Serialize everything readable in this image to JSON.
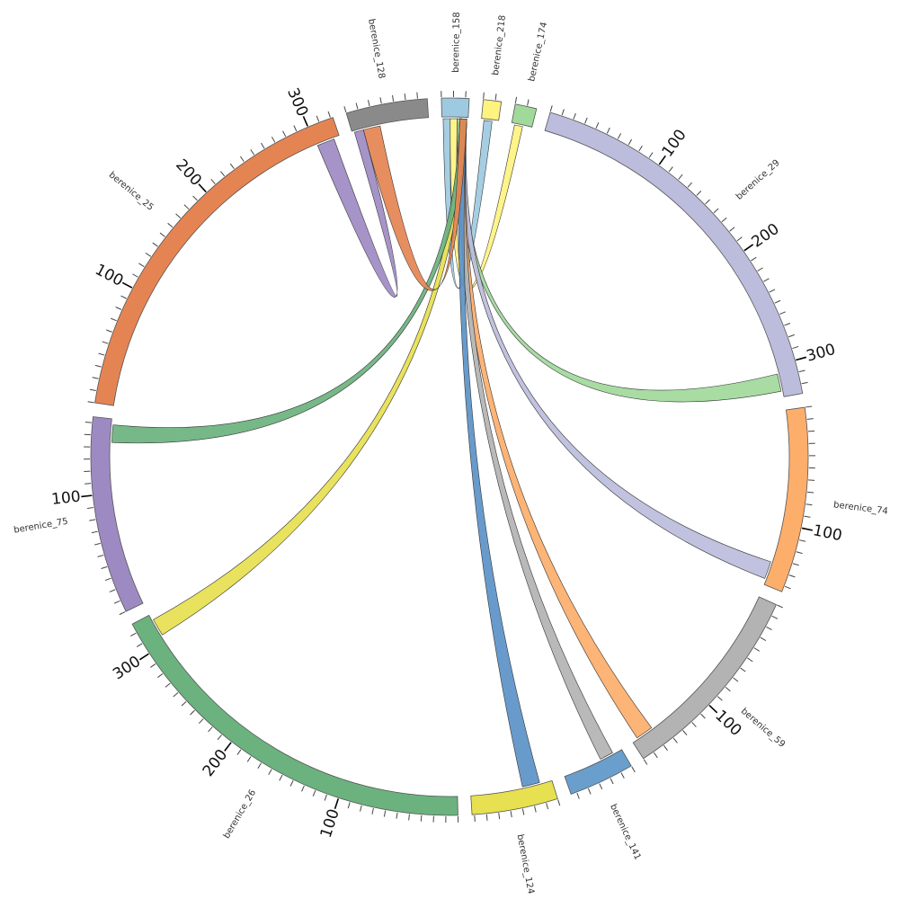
{
  "chart_data": {
    "type": "chord",
    "segments": [
      {
        "name": "berenice_158",
        "length": 23,
        "color": "#9ecae1"
      },
      {
        "name": "berenice_218",
        "length": 15,
        "color": "#fff380"
      },
      {
        "name": "berenice_174",
        "length": 18,
        "color": "#a1d99b"
      },
      {
        "name": "berenice_29",
        "length": 328,
        "color": "#bcbddc"
      },
      {
        "name": "berenice_74",
        "length": 155,
        "color": "#fdae6b"
      },
      {
        "name": "berenice_59",
        "length": 170,
        "color": "#b3b3b3"
      },
      {
        "name": "berenice_141",
        "length": 55,
        "color": "#6a9ecc"
      },
      {
        "name": "berenice_124",
        "length": 72,
        "color": "#e7e050"
      },
      {
        "name": "berenice_26",
        "length": 328,
        "color": "#6bb27f"
      },
      {
        "name": "berenice_75",
        "length": 165,
        "color": "#9e8ac2"
      },
      {
        "name": "berenice_25",
        "length": 322,
        "color": "#e58453"
      },
      {
        "name": "berenice_128",
        "length": 68,
        "color": "#8a8a8a"
      }
    ],
    "ribbons": [
      {
        "source": "berenice_218",
        "target": "berenice_158",
        "color": "#9ecae1"
      },
      {
        "source": "berenice_174",
        "target": "berenice_158",
        "color": "#fff380"
      },
      {
        "source": "berenice_29",
        "target": "berenice_158",
        "color": "#a1d99b"
      },
      {
        "source": "berenice_74",
        "target": "berenice_158",
        "color": "#bcbddc"
      },
      {
        "source": "berenice_59",
        "target": "berenice_158",
        "color": "#fdae6b"
      },
      {
        "source": "berenice_141",
        "target": "berenice_158",
        "color": "#b3b3b3"
      },
      {
        "source": "berenice_124",
        "target": "berenice_158",
        "color": "#5b93c7"
      },
      {
        "source": "berenice_26",
        "target": "berenice_158",
        "color": "#e7e050"
      },
      {
        "source": "berenice_75",
        "target": "berenice_158",
        "color": "#6bb27f"
      },
      {
        "source": "berenice_25",
        "target": "berenice_128",
        "color": "#9e8ac2"
      },
      {
        "source": "berenice_128",
        "target": "berenice_158",
        "color": "#e58453"
      }
    ]
  }
}
